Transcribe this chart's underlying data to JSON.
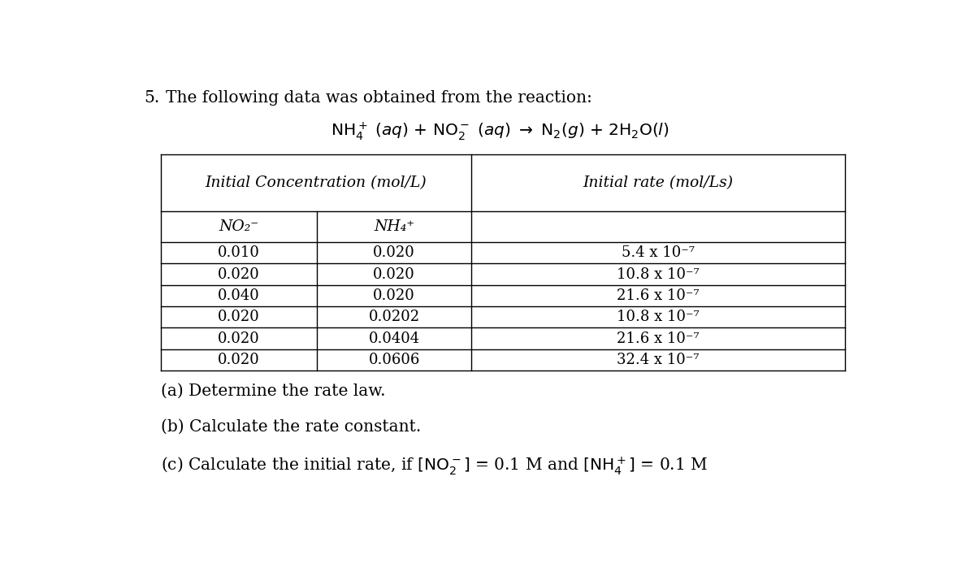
{
  "title_number": "5.",
  "title_text": "The following data was obtained from the reaction:",
  "col_header_left": "Initial Concentration (mol/L)",
  "col_header_right": "Initial rate (mol/Ls)",
  "sub_col1": "NO₂⁻",
  "sub_col2": "NH₄⁺",
  "table_data": [
    [
      "0.010",
      "0.020",
      "5.4 x 10⁻⁷"
    ],
    [
      "0.020",
      "0.020",
      "10.8 x 10⁻⁷"
    ],
    [
      "0.040",
      "0.020",
      "21.6 x 10⁻⁷"
    ],
    [
      "0.020",
      "0.0202",
      "10.8 x 10⁻⁷"
    ],
    [
      "0.020",
      "0.0404",
      "21.6 x 10⁻⁷"
    ],
    [
      "0.020",
      "0.0606",
      "32.4 x 10⁻⁷"
    ]
  ],
  "question_a": "(a) Determine the rate law.",
  "question_b": "(b) Calculate the rate constant.",
  "bg_color": "#ffffff",
  "text_color": "#000000",
  "font_size_title": 14.5,
  "font_size_equation": 14.5,
  "font_size_table_header": 13.5,
  "font_size_table_data": 13,
  "font_size_questions": 14.5
}
